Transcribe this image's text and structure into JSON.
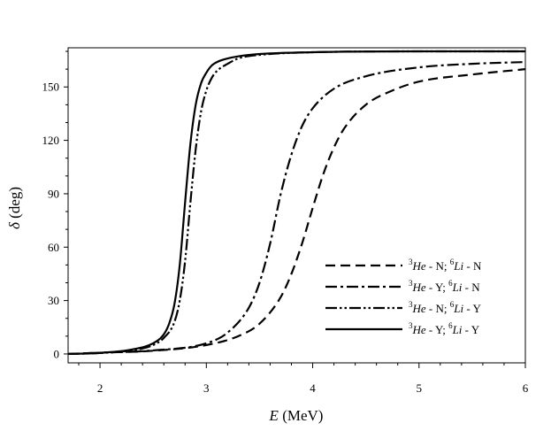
{
  "chart_data": {
    "type": "line",
    "xlabel": "E (MeV)",
    "xlabel_parts": {
      "symbol": "E",
      "unit": " (MeV)"
    },
    "ylabel": "δ (deg)",
    "ylabel_parts": {
      "symbol": "δ",
      "unit": " (deg)"
    },
    "xlim": [
      1.7,
      6.0
    ],
    "ylim": [
      -5,
      172
    ],
    "xticks": [
      2,
      3,
      4,
      5,
      6
    ],
    "yticks": [
      0,
      30,
      60,
      90,
      120,
      150
    ],
    "grid": false,
    "legend_position": "lower-right",
    "series": [
      {
        "name": "3He - N; 6Li - N",
        "label_parts": {
          "a_sup": "3",
          "a_sym": "He",
          "a_flag": " - N; ",
          "b_sup": "6",
          "b_sym": "Li",
          "b_flag": " - N"
        },
        "dash": "dashed",
        "x": [
          1.7,
          2.0,
          2.5,
          3.0,
          3.3,
          3.5,
          3.7,
          3.8,
          3.9,
          4.0,
          4.1,
          4.2,
          4.3,
          4.5,
          4.75,
          5.0,
          5.5,
          6.0
        ],
        "y": [
          0,
          0.7,
          1.8,
          5,
          10,
          17,
          32,
          45,
          62,
          82,
          101,
          116,
          127,
          140,
          148,
          153,
          157,
          160
        ]
      },
      {
        "name": "3He - Y; 6Li - N",
        "label_parts": {
          "a_sup": "3",
          "a_sym": "He",
          "a_flag": " - Y; ",
          "b_sup": "6",
          "b_sym": "Li",
          "b_flag": " - N"
        },
        "dash": "dash-dot",
        "x": [
          1.7,
          2.0,
          2.5,
          3.0,
          3.2,
          3.4,
          3.5,
          3.6,
          3.7,
          3.8,
          3.9,
          4.0,
          4.2,
          4.5,
          5.0,
          5.5,
          6.0
        ],
        "y": [
          0,
          0.7,
          2,
          6,
          12,
          26,
          40,
          62,
          90,
          112,
          128,
          138,
          149,
          156,
          161,
          163,
          164
        ]
      },
      {
        "name": "3He - N; 6Li - Y",
        "label_parts": {
          "a_sup": "3",
          "a_sym": "He",
          "a_flag": " - N; ",
          "b_sup": "6",
          "b_sym": "Li",
          "b_flag": " - Y"
        },
        "dash": "dash-dot-dot",
        "x": [
          1.7,
          2.0,
          2.3,
          2.5,
          2.6,
          2.7,
          2.75,
          2.8,
          2.85,
          2.9,
          2.95,
          3.0,
          3.05,
          3.1,
          3.2,
          3.3,
          3.5,
          4.0,
          5.0,
          6.0
        ],
        "y": [
          0,
          0.5,
          2,
          5,
          9,
          18,
          30,
          52,
          85,
          115,
          136,
          148,
          155,
          159,
          163,
          166,
          168,
          169.5,
          170,
          170
        ]
      },
      {
        "name": "3He - Y; 6Li - Y",
        "label_parts": {
          "a_sup": "3",
          "a_sym": "He",
          "a_flag": " - Y; ",
          "b_sup": "6",
          "b_sym": "Li",
          "b_flag": " - Y"
        },
        "dash": "solid",
        "x": [
          1.7,
          2.0,
          2.3,
          2.5,
          2.6,
          2.65,
          2.7,
          2.75,
          2.8,
          2.85,
          2.9,
          2.95,
          3.0,
          3.05,
          3.1,
          3.2,
          3.4,
          4.0,
          5.0,
          6.0
        ],
        "y": [
          0,
          0.6,
          2.5,
          6,
          11,
          17,
          28,
          50,
          85,
          118,
          140,
          152,
          158,
          162,
          164,
          166,
          168,
          169.5,
          170,
          170
        ]
      }
    ]
  }
}
